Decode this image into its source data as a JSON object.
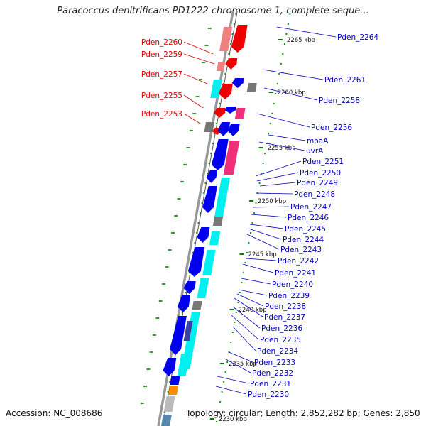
{
  "title": "Paracoccus denitrificans PD1222 chromosome 1, complete seque...",
  "accession": "Accession: NC_008686",
  "topology": "Topology: circular; Length: 2,852,282 bp; Genes: 2,850",
  "colors": {
    "left_label": "#dd0000",
    "right_label": "#0000bb",
    "tick": "#008000",
    "backbone": "#888888",
    "gene_blue": "#0000ee",
    "gene_cyan": "#00f0f0",
    "gene_red": "#ee0000",
    "gene_pink": "#f0307a",
    "gene_gray": "#777777"
  },
  "left_labels": [
    "Pden_2260",
    "Pden_2259",
    "Pden_2257",
    "Pden_2255",
    "Pden_2253"
  ],
  "right_labels": [
    "Pden_2264",
    "Pden_2261",
    "Pden_2258",
    "Pden_2256",
    "moaA",
    "uvrA",
    "Pden_2251",
    "Pden_2250",
    "Pden_2249",
    "Pden_2248",
    "Pden_2247",
    "Pden_2246",
    "Pden_2245",
    "Pden_2244",
    "Pden_2243",
    "Pden_2242",
    "Pden_2241",
    "Pden_2240",
    "Pden_2239",
    "Pden_2238",
    "Pden_2237",
    "Pden_2236",
    "Pden_2235",
    "Pden_2234",
    "Pden_2233",
    "Pden_2232",
    "Pden_2231",
    "Pden_2230"
  ],
  "kbp_ticks": [
    "2265 kbp",
    "2260 kbp",
    "2255 kbp",
    "2250 kbp",
    "2245 kbp",
    "2240 kbp",
    "2235 kbp",
    "2230 kbp"
  ]
}
